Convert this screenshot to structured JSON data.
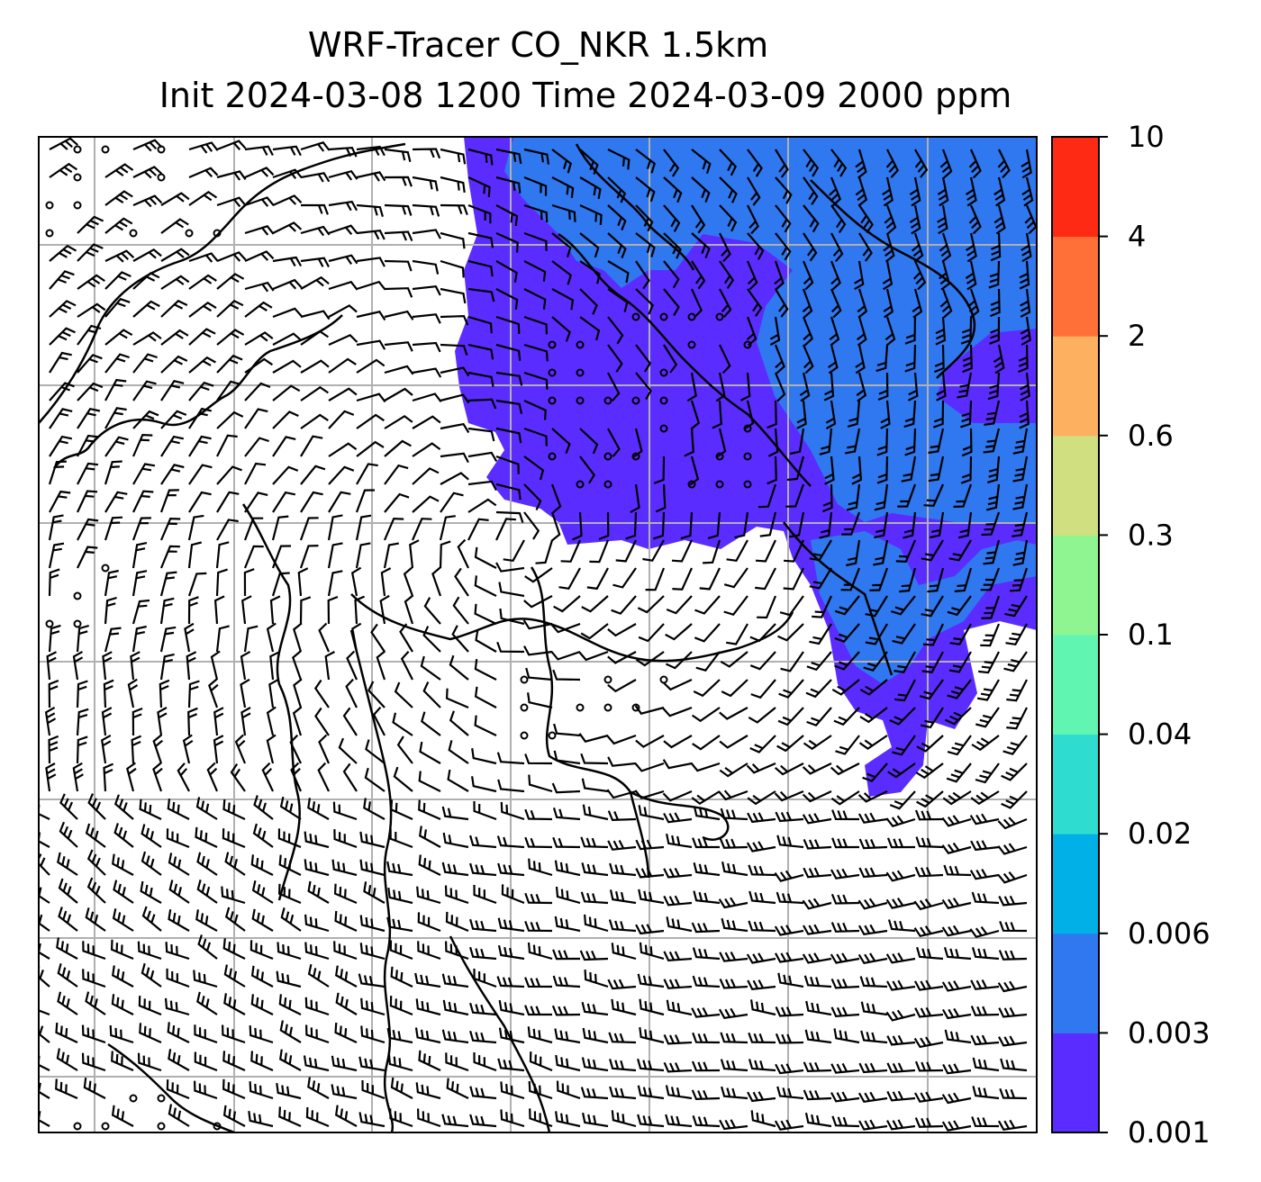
{
  "title": {
    "line1": "WRF-Tracer CO_NKR 1.5km",
    "line2": "Init 2024-03-08 1200 Time 2024-03-09 2000 ppm"
  },
  "colorbar": {
    "levels": [
      "0.001",
      "0.003",
      "0.006",
      "0.02",
      "0.04",
      "0.1",
      "0.3",
      "0.6",
      "2",
      "4",
      "10"
    ],
    "colors": [
      "#5b2cff",
      "#2f78f0",
      "#00b0e6",
      "#2edcd0",
      "#60f5b0",
      "#8ef590",
      "#d0e080",
      "#fcb060",
      "#ff7038",
      "#ff2a14"
    ]
  },
  "map": {
    "field": "CO tracer concentration",
    "overlay": "wind barbs",
    "gridlines": true
  }
}
